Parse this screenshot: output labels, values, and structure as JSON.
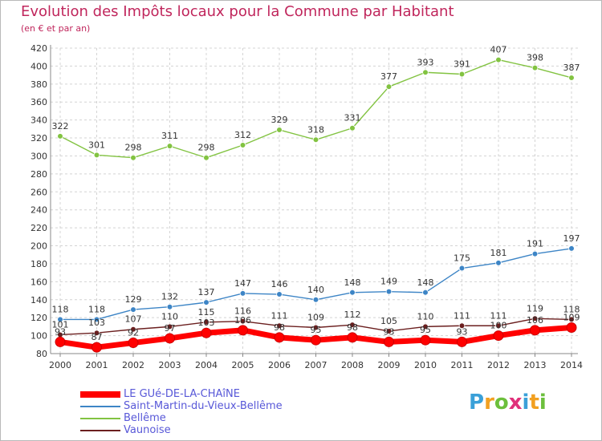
{
  "header": {
    "title": "Evolution des Impôts locaux pour la Commune par Habitant",
    "subtitle": "(en € et par an)"
  },
  "logo": {
    "text": "Proxiti",
    "colors": [
      "#3aa0d8",
      "#f2a020",
      "#6cbf3c",
      "#e0307a",
      "#3aa0d8",
      "#f2a020",
      "#6cbf3c"
    ]
  },
  "chart_data": {
    "type": "line",
    "title": "Evolution des Impôts locaux pour la Commune par Habitant",
    "subtitle": "(en € et par an)",
    "xlabel": "",
    "ylabel": "",
    "x": [
      "2000",
      "2001",
      "2002",
      "2003",
      "2004",
      "2005",
      "2006",
      "2007",
      "2008",
      "2009",
      "2010",
      "2011",
      "2012",
      "2013",
      "2014"
    ],
    "ylim": [
      80,
      420
    ],
    "yticks": [
      "80",
      "100",
      "120",
      "140",
      "160",
      "180",
      "200",
      "220",
      "240",
      "260",
      "280",
      "300",
      "320",
      "340",
      "360",
      "380",
      "400",
      "420"
    ],
    "grid": true,
    "legend_position": "bottom-left",
    "series": [
      {
        "name": "LE GUé-DE-LA-CHAîNE",
        "color": "#ff0000",
        "values": [
          93,
          87,
          92,
          97,
          103,
          106,
          98,
          95,
          98,
          93,
          95,
          93,
          100,
          106,
          109
        ],
        "labels": [
          "93",
          "87",
          "92",
          "97",
          "103",
          "106",
          "98",
          "95",
          "98",
          "93",
          "95",
          "93",
          "100",
          "106",
          "109"
        ]
      },
      {
        "name": "Saint-Martin-du-Vieux-Bellême",
        "color": "#3d85c6",
        "values": [
          118,
          118,
          129,
          132,
          137,
          147,
          146,
          140,
          148,
          149,
          148,
          175,
          181,
          191,
          197
        ],
        "labels": [
          "118",
          "118",
          "129",
          "132",
          "137",
          "147",
          "146",
          "140",
          "148",
          "149",
          "148",
          "175",
          "181",
          "191",
          "197"
        ]
      },
      {
        "name": "Bellême",
        "color": "#82c341",
        "values": [
          322,
          301,
          298,
          311,
          298,
          312,
          329,
          318,
          331,
          377,
          393,
          391,
          407,
          398,
          387
        ],
        "labels": [
          "322",
          "301",
          "298",
          "311",
          "298",
          "312",
          "329",
          "318",
          "331",
          "377",
          "393",
          "391",
          "407",
          "398",
          "387"
        ]
      },
      {
        "name": "Vaunoise",
        "color": "#6b1f1f",
        "values": [
          101,
          103,
          107,
          110,
          115,
          116,
          111,
          109,
          112,
          105,
          110,
          111,
          111,
          119,
          118
        ],
        "labels": [
          "101",
          "103",
          "107",
          "110",
          "115",
          "116",
          "111",
          "109",
          "112",
          "105",
          "110",
          "111",
          "111",
          "119",
          "118"
        ]
      }
    ]
  }
}
